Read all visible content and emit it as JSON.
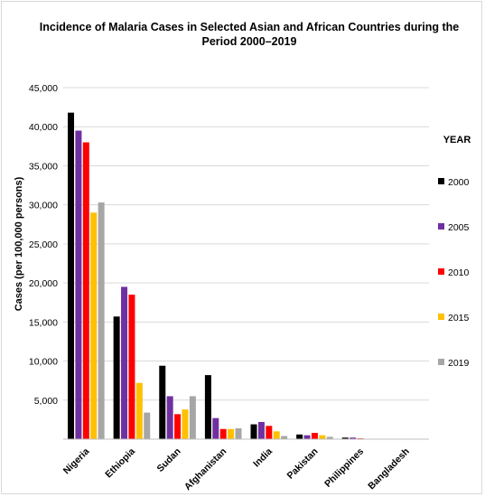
{
  "chart_data": {
    "type": "bar",
    "title_line1": "Incidence of Malaria Cases in Selected Asian and African Countries during the",
    "title_line2": "Period 2000–2019",
    "ylabel": "Cases (per 100,000 persons)",
    "xlabel": "",
    "ylim": [
      0,
      45000
    ],
    "yticks": [
      "45,000",
      "40,000",
      "35,000",
      "30,000",
      "25,000",
      "20,000",
      "15,000",
      "10,000",
      "5,000",
      ""
    ],
    "grid": true,
    "legend_title": "YEAR",
    "legend_position": "right",
    "categories": [
      "Nigeria",
      "Ethiopia",
      "Sudan",
      "Afghanistan",
      "India",
      "Pakistan",
      "Philippines",
      "Bangladesh"
    ],
    "series": [
      {
        "name": "2000",
        "color": "#000000",
        "values": [
          41800,
          15700,
          9400,
          8200,
          1900,
          600,
          200,
          50
        ]
      },
      {
        "name": "2005",
        "color": "#7030a0",
        "values": [
          39500,
          19500,
          5500,
          2700,
          2200,
          500,
          200,
          50
        ]
      },
      {
        "name": "2010",
        "color": "#ff0000",
        "values": [
          38000,
          18500,
          3200,
          1300,
          1700,
          800,
          100,
          50
        ]
      },
      {
        "name": "2015",
        "color": "#ffc000",
        "values": [
          29000,
          7200,
          3800,
          1300,
          1000,
          500,
          50,
          50
        ]
      },
      {
        "name": "2019",
        "color": "#a6a6a6",
        "values": [
          30300,
          3400,
          5500,
          1400,
          400,
          300,
          50,
          50
        ]
      }
    ]
  }
}
